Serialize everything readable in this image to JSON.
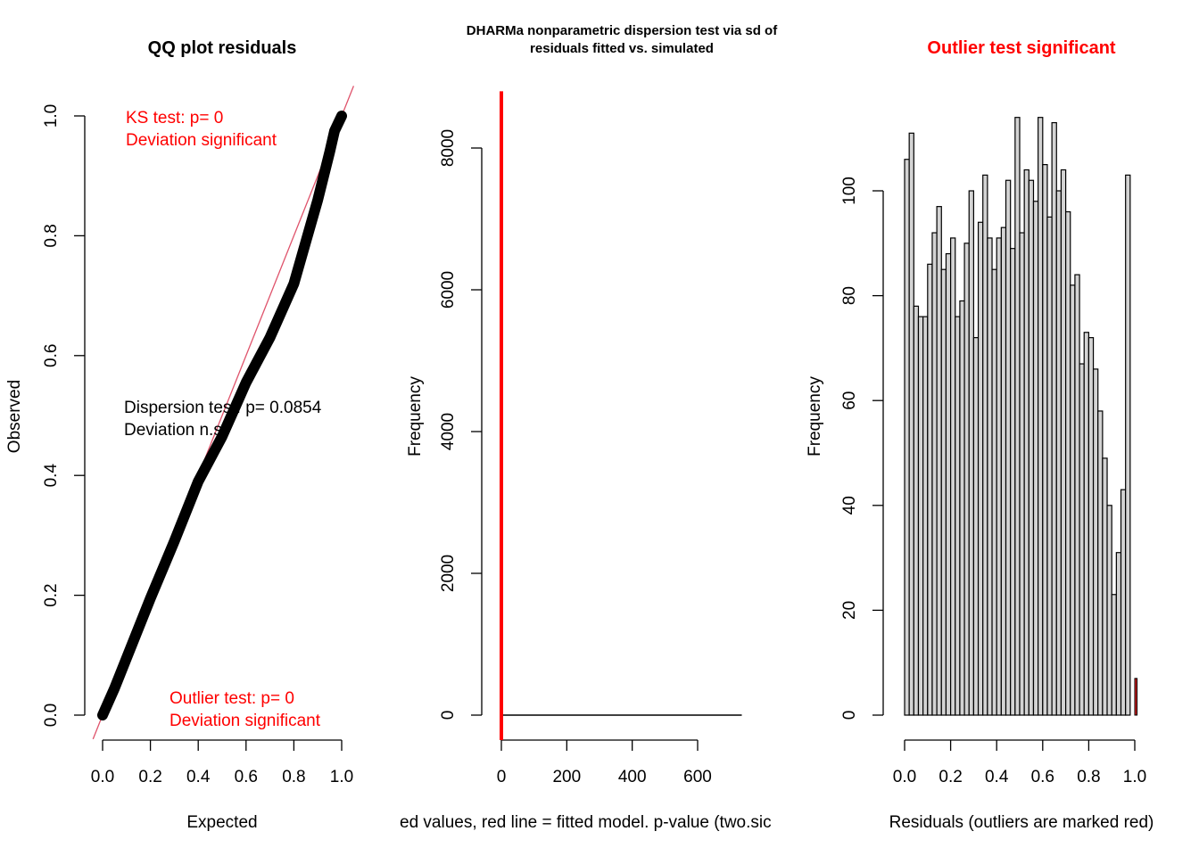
{
  "chart_data": [
    {
      "type": "scatter",
      "title": "QQ plot residuals",
      "xlabel": "Expected",
      "ylabel": "Observed",
      "xlim": [
        0,
        1
      ],
      "ylim": [
        0,
        1
      ],
      "xticks": [
        "0.0",
        "0.2",
        "0.4",
        "0.6",
        "0.8",
        "1.0"
      ],
      "yticks": [
        "0.0",
        "0.2",
        "0.4",
        "0.6",
        "0.8",
        "1.0"
      ],
      "reference_line": {
        "intercept": 0,
        "slope": 1,
        "color": "#df536b"
      },
      "qq_curve": {
        "expected": [
          0,
          0.05,
          0.1,
          0.2,
          0.3,
          0.4,
          0.5,
          0.55,
          0.6,
          0.7,
          0.8,
          0.85,
          0.9,
          0.95,
          0.97,
          1.0
        ],
        "observed": [
          0,
          0.045,
          0.095,
          0.195,
          0.29,
          0.39,
          0.465,
          0.51,
          0.555,
          0.63,
          0.72,
          0.79,
          0.86,
          0.94,
          0.975,
          1.0
        ]
      },
      "annotations": [
        {
          "line1": "KS test: p= 0",
          "line2": "Deviation  significant",
          "color": "#ff0000"
        },
        {
          "line1": "Dispersion test: p= 0.0854",
          "line2": "Deviation  n.s.",
          "color": "#000000"
        },
        {
          "line1": "Outlier test: p= 0",
          "line2": "Deviation  significant",
          "color": "#ff0000"
        }
      ]
    },
    {
      "type": "bar",
      "title": "DHARMa nonparametric dispersion test via sd of",
      "subtitle": "residuals fitted vs. simulated",
      "xlabel": "ed values, red line = fitted model. p-value (two.sic",
      "ylabel": "Frequency",
      "xlim": [
        -5,
        735
      ],
      "ylim": [
        0,
        8800
      ],
      "xticks": [
        "0",
        "200",
        "400",
        "600"
      ],
      "yticks": [
        "0",
        "2000",
        "4000",
        "6000",
        "8000"
      ],
      "histogram_max_frequency": 0,
      "observed_line": {
        "x": 0,
        "color": "#ff0000"
      }
    },
    {
      "type": "bar",
      "title": "Outlier test significant",
      "title_color": "#ff0000",
      "xlabel": "Residuals (outliers are marked red)",
      "ylabel": "Frequency",
      "xlim": [
        0,
        1
      ],
      "ylim": [
        0,
        112
      ],
      "xticks": [
        "0.0",
        "0.2",
        "0.4",
        "0.6",
        "0.8",
        "1.0"
      ],
      "yticks": [
        "0",
        "20",
        "40",
        "60",
        "80",
        "100"
      ],
      "bin_start": 0,
      "bin_width": 0.02,
      "bar_color": "#d3d3d3",
      "outlier_color": "#d21f1f",
      "values": [
        106,
        111,
        78,
        76,
        76,
        86,
        92,
        97,
        85,
        88,
        91,
        76,
        79,
        90,
        100,
        72,
        94,
        103,
        91,
        85,
        91,
        93,
        102,
        89,
        114,
        92,
        104,
        102,
        98,
        114,
        105,
        95,
        113,
        100,
        104,
        96,
        82,
        84,
        67,
        73,
        72,
        66,
        58,
        49,
        40,
        23,
        31,
        43,
        103,
        0
      ],
      "outlier_bins": [
        {
          "x": 1.0,
          "value": 7
        }
      ]
    }
  ]
}
